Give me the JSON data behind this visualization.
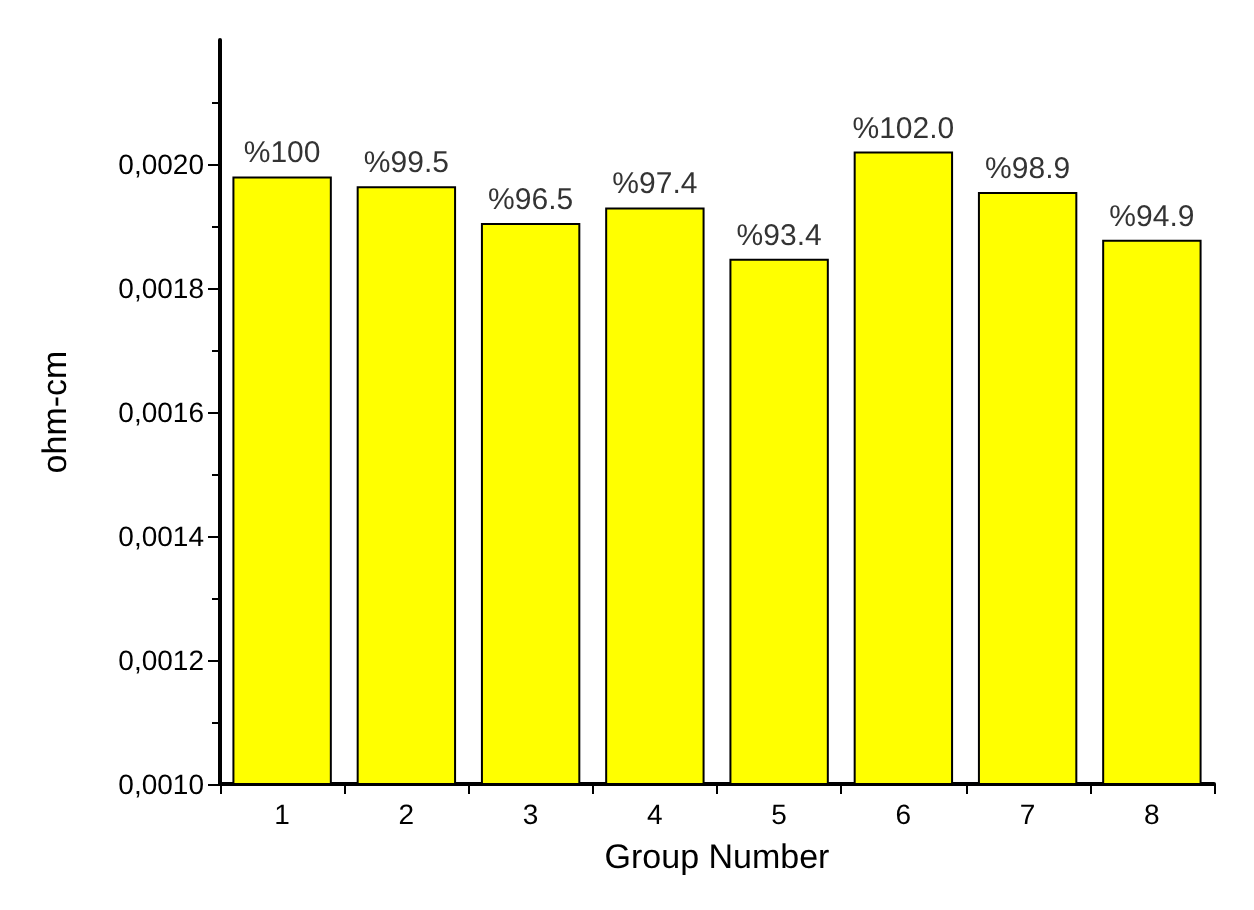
{
  "chart_data": {
    "type": "bar",
    "xlabel": "Group Number",
    "ylabel": "ohm-cm",
    "categories": [
      "1",
      "2",
      "3",
      "4",
      "5",
      "6",
      "7",
      "8"
    ],
    "values": [
      0.00198,
      0.001964,
      0.001905,
      0.00193,
      0.001847,
      0.00202,
      0.001955,
      0.001878
    ],
    "annotations": [
      {
        "text": "%100",
        "x": "1",
        "y": 0.00198
      },
      {
        "text": "%99.5",
        "x": "2",
        "y": 0.001964
      },
      {
        "text": "%96.5",
        "x": "3",
        "y": 0.001905
      },
      {
        "text": "%97.4",
        "x": "4",
        "y": 0.00193
      },
      {
        "text": "%93.4",
        "x": "5",
        "y": 0.001847
      },
      {
        "text": "%102.0",
        "x": "6",
        "y": 0.00202
      },
      {
        "text": "%98.9",
        "x": "7",
        "y": 0.001955
      },
      {
        "text": "%94.9",
        "x": "8",
        "y": 0.001878
      }
    ],
    "color": "#ffff00",
    "ylim": [
      0.001,
      0.0022
    ],
    "yticks": [
      {
        "value": 0.001,
        "label": "0,0010"
      },
      {
        "value": 0.0012,
        "label": "0,0012"
      },
      {
        "value": 0.0014,
        "label": "0,0014"
      },
      {
        "value": 0.0016,
        "label": "0,0016"
      },
      {
        "value": 0.0018,
        "label": "0,0018"
      },
      {
        "value": 0.002,
        "label": "0,0020"
      }
    ],
    "grid": false
  }
}
